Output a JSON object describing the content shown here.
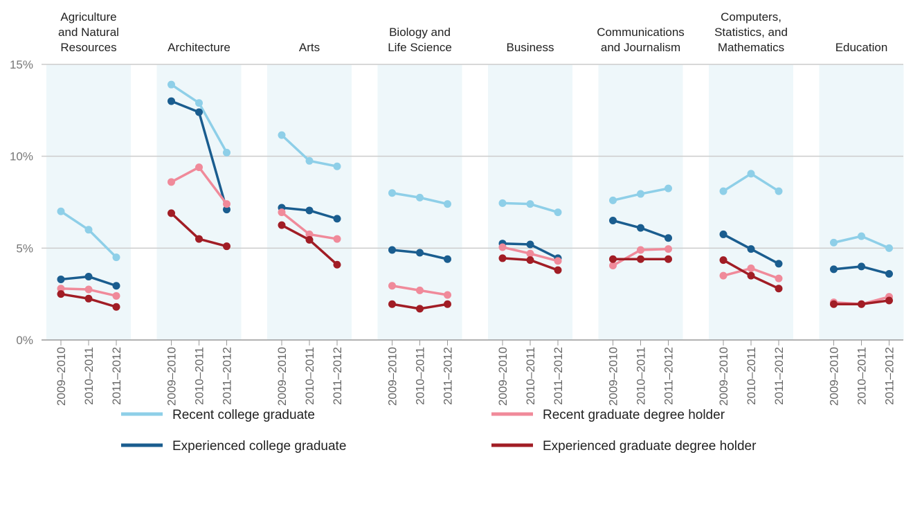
{
  "chart_data": {
    "type": "line",
    "panels": [
      [
        "Agriculture",
        "and Natural",
        "Resources"
      ],
      [
        "Architecture"
      ],
      [
        "Arts"
      ],
      [
        "Biology and",
        "Life Science"
      ],
      [
        "Business"
      ],
      [
        "Communications",
        "and Journalism"
      ],
      [
        "Computers,",
        "Statistics, and",
        "Mathematics"
      ],
      [
        "Education"
      ]
    ],
    "categories": [
      "2009–2010",
      "2010–2011",
      "2011–2012"
    ],
    "ylim": [
      0,
      15
    ],
    "yticks": [
      {
        "value": 0,
        "label": "0%"
      },
      {
        "value": 5,
        "label": "5%"
      },
      {
        "value": 10,
        "label": "10%"
      },
      {
        "value": 15,
        "label": "15%"
      }
    ],
    "grid": true,
    "series": [
      {
        "name": "Recent college graduate",
        "color": "#8ecfe8",
        "values": [
          [
            7.0,
            6.0,
            4.5
          ],
          [
            13.9,
            12.9,
            10.2
          ],
          [
            11.15,
            9.75,
            9.45
          ],
          [
            8.0,
            7.75,
            7.4
          ],
          [
            7.45,
            7.4,
            6.95
          ],
          [
            7.6,
            7.95,
            8.25
          ],
          [
            8.1,
            9.05,
            8.1
          ],
          [
            5.3,
            5.65,
            5.0
          ]
        ]
      },
      {
        "name": "Experienced college graduate",
        "color": "#1a5d8f",
        "values": [
          [
            3.3,
            3.45,
            2.95
          ],
          [
            13.0,
            12.4,
            7.1
          ],
          [
            7.2,
            7.05,
            6.6
          ],
          [
            4.9,
            4.75,
            4.4
          ],
          [
            5.25,
            5.2,
            4.45
          ],
          [
            6.5,
            6.1,
            5.55
          ],
          [
            5.75,
            4.95,
            4.15
          ],
          [
            3.85,
            4.0,
            3.6
          ]
        ]
      },
      {
        "name": "Recent graduate degree holder",
        "color": "#f08a9a",
        "values": [
          [
            2.8,
            2.75,
            2.4
          ],
          [
            8.6,
            9.4,
            7.4
          ],
          [
            6.95,
            5.75,
            5.5
          ],
          [
            2.95,
            2.7,
            2.45
          ],
          [
            5.05,
            4.7,
            4.3
          ],
          [
            4.05,
            4.9,
            4.95
          ],
          [
            3.5,
            3.9,
            3.35
          ],
          [
            2.05,
            1.95,
            2.35
          ]
        ]
      },
      {
        "name": "Experienced graduate degree holder",
        "color": "#a11d25",
        "values": [
          [
            2.5,
            2.25,
            1.8
          ],
          [
            6.9,
            5.5,
            5.1
          ],
          [
            6.25,
            5.45,
            4.1
          ],
          [
            1.95,
            1.7,
            1.95
          ],
          [
            4.45,
            4.35,
            3.8
          ],
          [
            4.4,
            4.4,
            4.4
          ],
          [
            4.35,
            3.5,
            2.8
          ],
          [
            1.95,
            1.95,
            2.15
          ]
        ]
      }
    ]
  }
}
